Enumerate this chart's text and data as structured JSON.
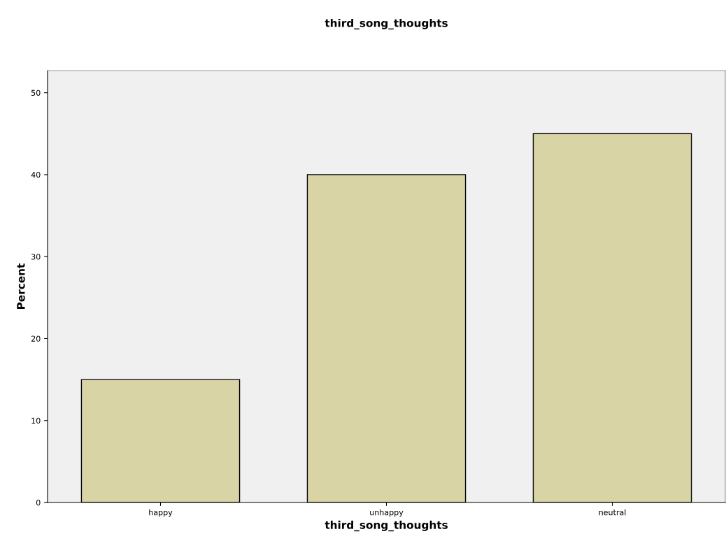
{
  "chart_data": {
    "type": "bar",
    "title": "third_song_thoughts",
    "xlabel": "third_song_thoughts",
    "ylabel": "Percent",
    "categories": [
      "happy",
      "unhappy",
      "neutral"
    ],
    "values": [
      15,
      40,
      45
    ],
    "color": "#d9d4a6",
    "ylim": [
      0,
      52.7
    ],
    "yticks": [
      0,
      10,
      20,
      30,
      40,
      50
    ],
    "grid": false
  }
}
